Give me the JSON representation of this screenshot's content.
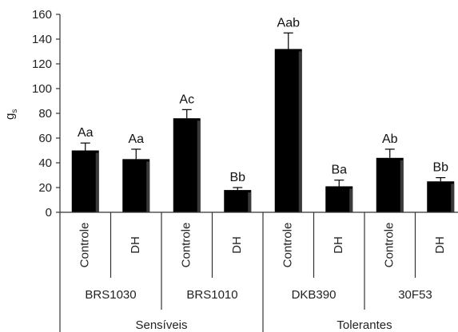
{
  "chart_data": {
    "type": "bar",
    "ylabel": "g",
    "ylabel_sub": "s",
    "ylim": [
      0,
      160
    ],
    "yticks": [
      0,
      20,
      40,
      60,
      80,
      100,
      120,
      140,
      160
    ],
    "bar_color": "#000000",
    "errorbars": true,
    "grid": false,
    "legend": "none",
    "treatment_labels": [
      "Controle",
      "DH",
      "Controle",
      "DH",
      "Controle",
      "DH",
      "Controle",
      "DH"
    ],
    "cultivars": [
      "BRS1030",
      "BRS1010",
      "DKB390",
      "30F53"
    ],
    "groups": [
      "Sensíveis",
      "Tolerantes"
    ],
    "values": [
      50,
      43,
      76,
      18,
      132,
      21,
      44,
      25
    ],
    "errors": [
      6,
      8,
      7,
      2,
      13,
      5,
      7,
      3
    ],
    "significance": [
      "Aa",
      "Aa",
      "Ac",
      "Bb",
      "Aab",
      "Ba",
      "Ab",
      "Bb"
    ]
  }
}
